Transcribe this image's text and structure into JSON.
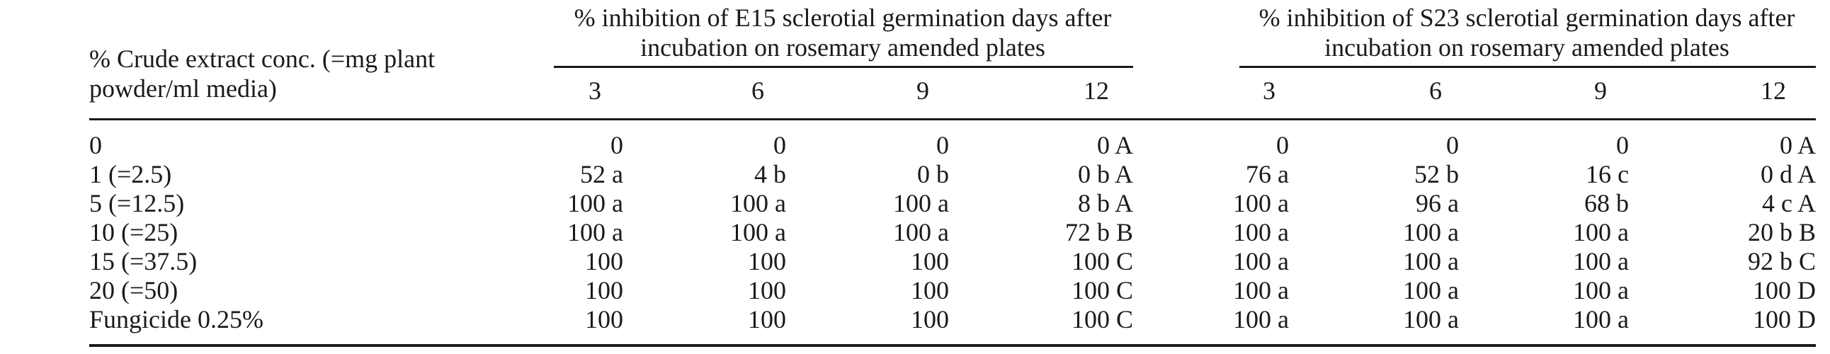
{
  "table": {
    "row_header_label": [
      "% Crude extract conc. (=mg plant",
      "powder/ml media)"
    ],
    "groups": [
      {
        "title": [
          "% inhibition of E15 sclerotial germination days after",
          "incubation on rosemary amended plates"
        ],
        "days": [
          "3",
          "6",
          "9",
          "12"
        ]
      },
      {
        "title": [
          "% inhibition of S23 sclerotial germination days after",
          "incubation on rosemary amended plates"
        ],
        "days": [
          "3",
          "6",
          "9",
          "12"
        ]
      }
    ],
    "rows": [
      {
        "label": "0",
        "e15": [
          "0",
          "0",
          "0",
          "0 A"
        ],
        "s23": [
          "0",
          "0",
          "0",
          "0 A"
        ]
      },
      {
        "label": "1 (=2.5)",
        "e15": [
          "52 a",
          "4 b",
          "0 b",
          "0 b A"
        ],
        "s23": [
          "76 a",
          "52 b",
          "16 c",
          "0 d A"
        ]
      },
      {
        "label": "5 (=12.5)",
        "e15": [
          "100 a",
          "100 a",
          "100 a",
          "8 b A"
        ],
        "s23": [
          "100 a",
          "96 a",
          "68 b",
          "4 c A"
        ]
      },
      {
        "label": "10 (=25)",
        "e15": [
          "100 a",
          "100 a",
          "100 a",
          "72 b B"
        ],
        "s23": [
          "100 a",
          "100 a",
          "100 a",
          "20 b B"
        ]
      },
      {
        "label": "15 (=37.5)",
        "e15": [
          "100",
          "100",
          "100",
          "100 C"
        ],
        "s23": [
          "100 a",
          "100 a",
          "100 a",
          "92 b C"
        ]
      },
      {
        "label": "20 (=50)",
        "e15": [
          "100",
          "100",
          "100",
          "100 C"
        ],
        "s23": [
          "100 a",
          "100 a",
          "100 a",
          "100 D"
        ]
      },
      {
        "label": "Fungicide 0.25%",
        "e15": [
          "100",
          "100",
          "100",
          "100 C"
        ],
        "s23": [
          "100 a",
          "100 a",
          "100 a",
          "100 D"
        ]
      }
    ]
  }
}
